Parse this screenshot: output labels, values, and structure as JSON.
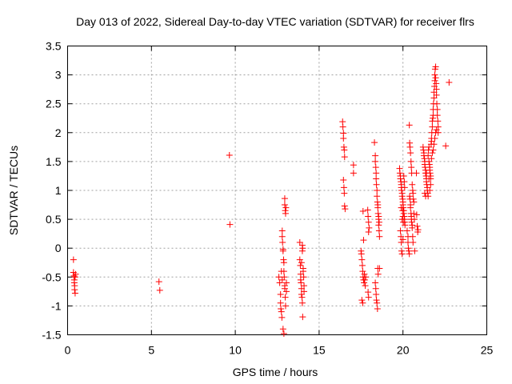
{
  "chart_data": {
    "type": "scatter",
    "title": "Day 013 of 2022, Sidereal Day-to-day VTEC variation (SDTVAR) for receiver flrs",
    "xlabel": "GPS time / hours",
    "ylabel": "SDTVAR / TECUs",
    "xlim": [
      0,
      25
    ],
    "ylim": [
      -1.5,
      3.5
    ],
    "xticks": [
      0,
      5,
      10,
      15,
      20,
      25
    ],
    "yticks": [
      -1.5,
      -1,
      -0.5,
      0,
      0.5,
      1,
      1.5,
      2,
      2.5,
      3,
      3.5
    ],
    "xtick_labels": [
      "0",
      "5",
      "10",
      "15",
      "20",
      "25"
    ],
    "ytick_labels": [
      "-1.5",
      "-1",
      "-0.5",
      "0",
      "0.5",
      "1",
      "1.5",
      "2",
      "2.5",
      "3",
      "3.5"
    ],
    "grid": true,
    "marker": "+",
    "color": "#ff0000",
    "series": [
      {
        "name": "SDTVAR",
        "points": [
          [
            0.35,
            -0.2
          ],
          [
            0.35,
            -0.42
          ],
          [
            0.38,
            -0.48
          ],
          [
            0.4,
            -0.55
          ],
          [
            0.4,
            -0.6
          ],
          [
            0.42,
            -0.65
          ],
          [
            0.42,
            -0.72
          ],
          [
            0.45,
            -0.78
          ],
          [
            0.45,
            -0.5
          ],
          [
            0.48,
            -0.45
          ],
          [
            5.45,
            -0.58
          ],
          [
            5.5,
            -0.73
          ],
          [
            9.65,
            1.61
          ],
          [
            9.68,
            0.41
          ],
          [
            12.6,
            -0.5
          ],
          [
            12.65,
            -0.6
          ],
          [
            12.7,
            -0.8
          ],
          [
            12.7,
            -0.95
          ],
          [
            12.72,
            -1.05
          ],
          [
            12.75,
            -1.1
          ],
          [
            12.78,
            -1.2
          ],
          [
            12.8,
            0.3
          ],
          [
            12.8,
            0.2
          ],
          [
            12.82,
            0.1
          ],
          [
            12.85,
            -0.02
          ],
          [
            12.85,
            -0.05
          ],
          [
            12.88,
            -0.2
          ],
          [
            12.9,
            -0.25
          ],
          [
            12.9,
            -0.4
          ],
          [
            12.92,
            -0.5
          ],
          [
            12.95,
            -0.65
          ],
          [
            12.95,
            -0.7
          ],
          [
            12.98,
            -0.85
          ],
          [
            13.0,
            -1.0
          ],
          [
            12.85,
            -1.4
          ],
          [
            12.9,
            -1.48
          ],
          [
            12.95,
            0.86
          ],
          [
            12.95,
            0.75
          ],
          [
            12.98,
            0.65
          ],
          [
            13.0,
            0.6
          ],
          [
            13.02,
            0.7
          ],
          [
            13.05,
            -0.6
          ],
          [
            13.05,
            -0.75
          ],
          [
            12.75,
            -0.4
          ],
          [
            12.8,
            -0.55
          ],
          [
            13.85,
            0.1
          ],
          [
            13.85,
            -0.2
          ],
          [
            13.88,
            -0.3
          ],
          [
            13.9,
            -0.45
          ],
          [
            13.9,
            -0.55
          ],
          [
            13.92,
            -0.6
          ],
          [
            13.95,
            -0.7
          ],
          [
            13.95,
            -0.8
          ],
          [
            13.98,
            -0.85
          ],
          [
            14.0,
            -0.05
          ],
          [
            14.0,
            0.05
          ],
          [
            14.02,
            0.0
          ],
          [
            14.05,
            -0.35
          ],
          [
            14.05,
            -0.4
          ],
          [
            14.08,
            -0.5
          ],
          [
            14.1,
            -0.65
          ],
          [
            14.1,
            -0.75
          ],
          [
            14.0,
            -0.95
          ],
          [
            14.02,
            -1.19
          ],
          [
            13.95,
            -0.25
          ],
          [
            16.4,
            2.19
          ],
          [
            16.42,
            2.1
          ],
          [
            16.45,
            1.99
          ],
          [
            16.45,
            1.9
          ],
          [
            16.48,
            1.75
          ],
          [
            16.5,
            1.7
          ],
          [
            16.52,
            1.58
          ],
          [
            16.45,
            1.18
          ],
          [
            16.48,
            1.05
          ],
          [
            16.5,
            0.95
          ],
          [
            16.52,
            0.73
          ],
          [
            16.55,
            0.68
          ],
          [
            17.05,
            1.44
          ],
          [
            17.05,
            1.3
          ],
          [
            17.5,
            -0.05
          ],
          [
            17.52,
            -0.1
          ],
          [
            17.55,
            -0.2
          ],
          [
            17.58,
            -0.3
          ],
          [
            17.6,
            -0.4
          ],
          [
            17.62,
            -0.5
          ],
          [
            17.65,
            -0.55
          ],
          [
            17.68,
            -0.6
          ],
          [
            17.7,
            -0.45
          ],
          [
            17.72,
            -0.55
          ],
          [
            17.75,
            -0.65
          ],
          [
            17.55,
            -0.9
          ],
          [
            17.6,
            -0.95
          ],
          [
            17.62,
            0.64
          ],
          [
            17.65,
            0.14
          ],
          [
            17.78,
            -0.5
          ],
          [
            17.9,
            0.66
          ],
          [
            17.92,
            0.55
          ],
          [
            17.95,
            0.45
          ],
          [
            17.98,
            0.35
          ],
          [
            17.95,
            0.28
          ],
          [
            17.92,
            -0.76
          ],
          [
            17.95,
            -0.85
          ],
          [
            18.3,
            1.83
          ],
          [
            18.35,
            1.6
          ],
          [
            18.35,
            1.5
          ],
          [
            18.38,
            1.4
          ],
          [
            18.4,
            1.3
          ],
          [
            18.4,
            1.2
          ],
          [
            18.42,
            1.1
          ],
          [
            18.45,
            1.0
          ],
          [
            18.45,
            0.9
          ],
          [
            18.48,
            0.8
          ],
          [
            18.5,
            0.75
          ],
          [
            18.5,
            0.7
          ],
          [
            18.52,
            0.6
          ],
          [
            18.55,
            0.5
          ],
          [
            18.55,
            0.4
          ],
          [
            18.58,
            0.3
          ],
          [
            18.6,
            0.2
          ],
          [
            18.35,
            -0.6
          ],
          [
            18.38,
            -0.7
          ],
          [
            18.4,
            -0.8
          ],
          [
            18.42,
            -0.9
          ],
          [
            18.45,
            -0.95
          ],
          [
            18.48,
            -1.05
          ],
          [
            18.5,
            -0.35
          ],
          [
            18.52,
            -0.45
          ],
          [
            18.55,
            0.55
          ],
          [
            18.58,
            0.45
          ],
          [
            18.6,
            -0.35
          ],
          [
            19.8,
            1.38
          ],
          [
            19.82,
            1.3
          ],
          [
            19.85,
            1.25
          ],
          [
            19.85,
            1.2
          ],
          [
            19.88,
            1.15
          ],
          [
            19.9,
            1.1
          ],
          [
            19.9,
            1.05
          ],
          [
            19.92,
            1.0
          ],
          [
            19.95,
            0.95
          ],
          [
            19.95,
            0.9
          ],
          [
            19.98,
            0.85
          ],
          [
            20.0,
            0.8
          ],
          [
            20.0,
            0.75
          ],
          [
            20.02,
            0.7
          ],
          [
            20.05,
            0.65
          ],
          [
            20.05,
            0.6
          ],
          [
            20.08,
            0.55
          ],
          [
            20.1,
            0.5
          ],
          [
            20.1,
            0.45
          ],
          [
            20.12,
            0.4
          ],
          [
            19.85,
            0.3
          ],
          [
            19.88,
            0.2
          ],
          [
            19.9,
            0.1
          ],
          [
            19.92,
            -0.05
          ],
          [
            19.95,
            -0.1
          ],
          [
            19.98,
            0.65
          ],
          [
            20.0,
            0.55
          ],
          [
            20.02,
            0.45
          ],
          [
            20.05,
            1.25
          ],
          [
            20.08,
            1.15
          ],
          [
            20.1,
            1.05
          ],
          [
            19.9,
            0.7
          ],
          [
            19.95,
            0.5
          ],
          [
            20.0,
            0.15
          ],
          [
            20.25,
            0.3
          ],
          [
            20.3,
            0.2
          ],
          [
            20.3,
            0.1
          ],
          [
            20.32,
            0.0
          ],
          [
            20.35,
            -0.05
          ],
          [
            20.38,
            -0.1
          ],
          [
            20.4,
            0.9
          ],
          [
            20.42,
            0.85
          ],
          [
            20.45,
            0.75
          ],
          [
            20.45,
            0.7
          ],
          [
            20.48,
            0.6
          ],
          [
            20.5,
            0.55
          ],
          [
            20.5,
            0.5
          ],
          [
            20.52,
            0.45
          ],
          [
            20.55,
            0.4
          ],
          [
            20.55,
            0.35
          ],
          [
            20.58,
            0.2
          ],
          [
            20.6,
            0.1
          ],
          [
            20.38,
            2.13
          ],
          [
            20.4,
            1.82
          ],
          [
            20.42,
            1.75
          ],
          [
            20.45,
            1.65
          ],
          [
            20.48,
            1.5
          ],
          [
            20.5,
            1.4
          ],
          [
            20.52,
            1.3
          ],
          [
            20.55,
            1.1
          ],
          [
            20.58,
            1.0
          ],
          [
            20.6,
            0.95
          ],
          [
            20.62,
            0.85
          ],
          [
            20.65,
            0.8
          ],
          [
            20.65,
            0.6
          ],
          [
            20.68,
            0.5
          ],
          [
            20.7,
            -0.05
          ],
          [
            20.8,
            1.3
          ],
          [
            20.82,
            0.58
          ],
          [
            20.85,
            0.38
          ],
          [
            20.88,
            0.28
          ],
          [
            20.9,
            0.32
          ],
          [
            21.2,
            1.75
          ],
          [
            21.22,
            1.7
          ],
          [
            21.25,
            1.65
          ],
          [
            21.25,
            1.6
          ],
          [
            21.28,
            1.55
          ],
          [
            21.3,
            1.5
          ],
          [
            21.3,
            1.45
          ],
          [
            21.32,
            1.4
          ],
          [
            21.35,
            1.35
          ],
          [
            21.35,
            1.3
          ],
          [
            21.38,
            1.25
          ],
          [
            21.4,
            1.2
          ],
          [
            21.4,
            1.15
          ],
          [
            21.42,
            1.1
          ],
          [
            21.45,
            1.05
          ],
          [
            21.45,
            1.0
          ],
          [
            21.48,
            0.95
          ],
          [
            21.5,
            0.9
          ],
          [
            21.5,
            1.6
          ],
          [
            21.52,
            1.7
          ],
          [
            21.55,
            1.75
          ],
          [
            21.55,
            1.5
          ],
          [
            21.58,
            1.45
          ],
          [
            21.6,
            1.4
          ],
          [
            21.6,
            1.35
          ],
          [
            21.62,
            1.3
          ],
          [
            21.65,
            1.25
          ],
          [
            21.65,
            1.2
          ],
          [
            21.68,
            1.8
          ],
          [
            21.7,
            1.85
          ],
          [
            21.7,
            1.9
          ],
          [
            21.72,
            2.0
          ],
          [
            21.75,
            2.1
          ],
          [
            21.75,
            2.2
          ],
          [
            21.78,
            2.25
          ],
          [
            21.8,
            2.3
          ],
          [
            21.8,
            2.4
          ],
          [
            21.82,
            2.5
          ],
          [
            21.85,
            2.6
          ],
          [
            21.85,
            2.7
          ],
          [
            21.88,
            2.8
          ],
          [
            21.9,
            2.9
          ],
          [
            21.9,
            3.0
          ],
          [
            21.92,
            3.1
          ],
          [
            21.95,
            3.14
          ],
          [
            21.95,
            2.95
          ],
          [
            21.98,
            2.85
          ],
          [
            22.0,
            2.75
          ],
          [
            22.0,
            2.65
          ],
          [
            22.02,
            2.5
          ],
          [
            22.05,
            2.4
          ],
          [
            22.05,
            2.3
          ],
          [
            22.08,
            2.2
          ],
          [
            22.1,
            2.1
          ],
          [
            22.1,
            2.0
          ],
          [
            21.6,
            1.0
          ],
          [
            21.65,
            1.1
          ],
          [
            21.7,
            1.55
          ],
          [
            21.75,
            1.65
          ],
          [
            21.8,
            1.7
          ],
          [
            21.85,
            1.8
          ],
          [
            21.9,
            1.9
          ],
          [
            21.95,
            2.0
          ],
          [
            22.0,
            2.05
          ],
          [
            21.3,
            0.95
          ],
          [
            21.35,
            0.9
          ],
          [
            21.4,
            1.3
          ],
          [
            21.55,
            1.2
          ],
          [
            22.55,
            1.77
          ],
          [
            22.75,
            2.87
          ]
        ]
      }
    ]
  }
}
